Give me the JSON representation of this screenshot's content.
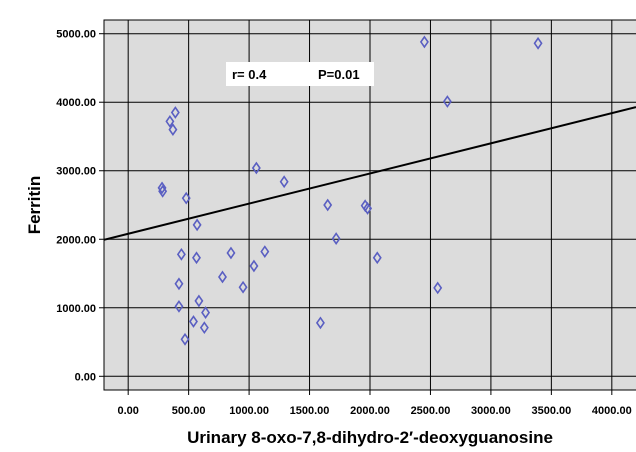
{
  "chart_data": {
    "type": "scatter",
    "xlabel": "Urinary 8-oxo-7,8-dihydro-2′-deoxyguanosine",
    "ylabel": "Ferritin",
    "xlim": [
      -200,
      4200
    ],
    "ylim": [
      -200,
      5200
    ],
    "x_ticks": [
      0,
      500,
      1000,
      1500,
      2000,
      2500,
      3000,
      3500,
      4000
    ],
    "x_tick_labels": [
      "0.00",
      "500.00",
      "1000.00",
      "1500.00",
      "2000.00",
      "2500.00",
      "3000.00",
      "3500.00",
      "4000.00"
    ],
    "y_ticks": [
      0,
      1000,
      2000,
      3000,
      4000,
      5000
    ],
    "y_tick_labels": [
      "0.00",
      "1000.00",
      "2000.00",
      "3000.00",
      "4000.00",
      "5000.00"
    ],
    "grid": true,
    "annotation": {
      "r_text": "r= 0.4",
      "p_text": "P=0.01"
    },
    "fit_line": {
      "intercept": 2080,
      "slope": 0.44
    },
    "points": [
      {
        "x": 280,
        "y": 2750
      },
      {
        "x": 285,
        "y": 2700
      },
      {
        "x": 345,
        "y": 3720
      },
      {
        "x": 370,
        "y": 3600
      },
      {
        "x": 390,
        "y": 3850
      },
      {
        "x": 420,
        "y": 1350
      },
      {
        "x": 420,
        "y": 1020
      },
      {
        "x": 440,
        "y": 1780
      },
      {
        "x": 470,
        "y": 540
      },
      {
        "x": 480,
        "y": 2600
      },
      {
        "x": 540,
        "y": 800
      },
      {
        "x": 565,
        "y": 1730
      },
      {
        "x": 570,
        "y": 2210
      },
      {
        "x": 585,
        "y": 1100
      },
      {
        "x": 630,
        "y": 710
      },
      {
        "x": 640,
        "y": 930
      },
      {
        "x": 780,
        "y": 1450
      },
      {
        "x": 850,
        "y": 1800
      },
      {
        "x": 950,
        "y": 1300
      },
      {
        "x": 1040,
        "y": 1610
      },
      {
        "x": 1060,
        "y": 3040
      },
      {
        "x": 1130,
        "y": 1820
      },
      {
        "x": 1290,
        "y": 2840
      },
      {
        "x": 1590,
        "y": 780
      },
      {
        "x": 1650,
        "y": 2500
      },
      {
        "x": 1720,
        "y": 2010
      },
      {
        "x": 1960,
        "y": 2490
      },
      {
        "x": 1980,
        "y": 2450
      },
      {
        "x": 2060,
        "y": 1730
      },
      {
        "x": 2450,
        "y": 4880
      },
      {
        "x": 2560,
        "y": 1290
      },
      {
        "x": 2640,
        "y": 4010
      },
      {
        "x": 3390,
        "y": 4860
      }
    ]
  }
}
